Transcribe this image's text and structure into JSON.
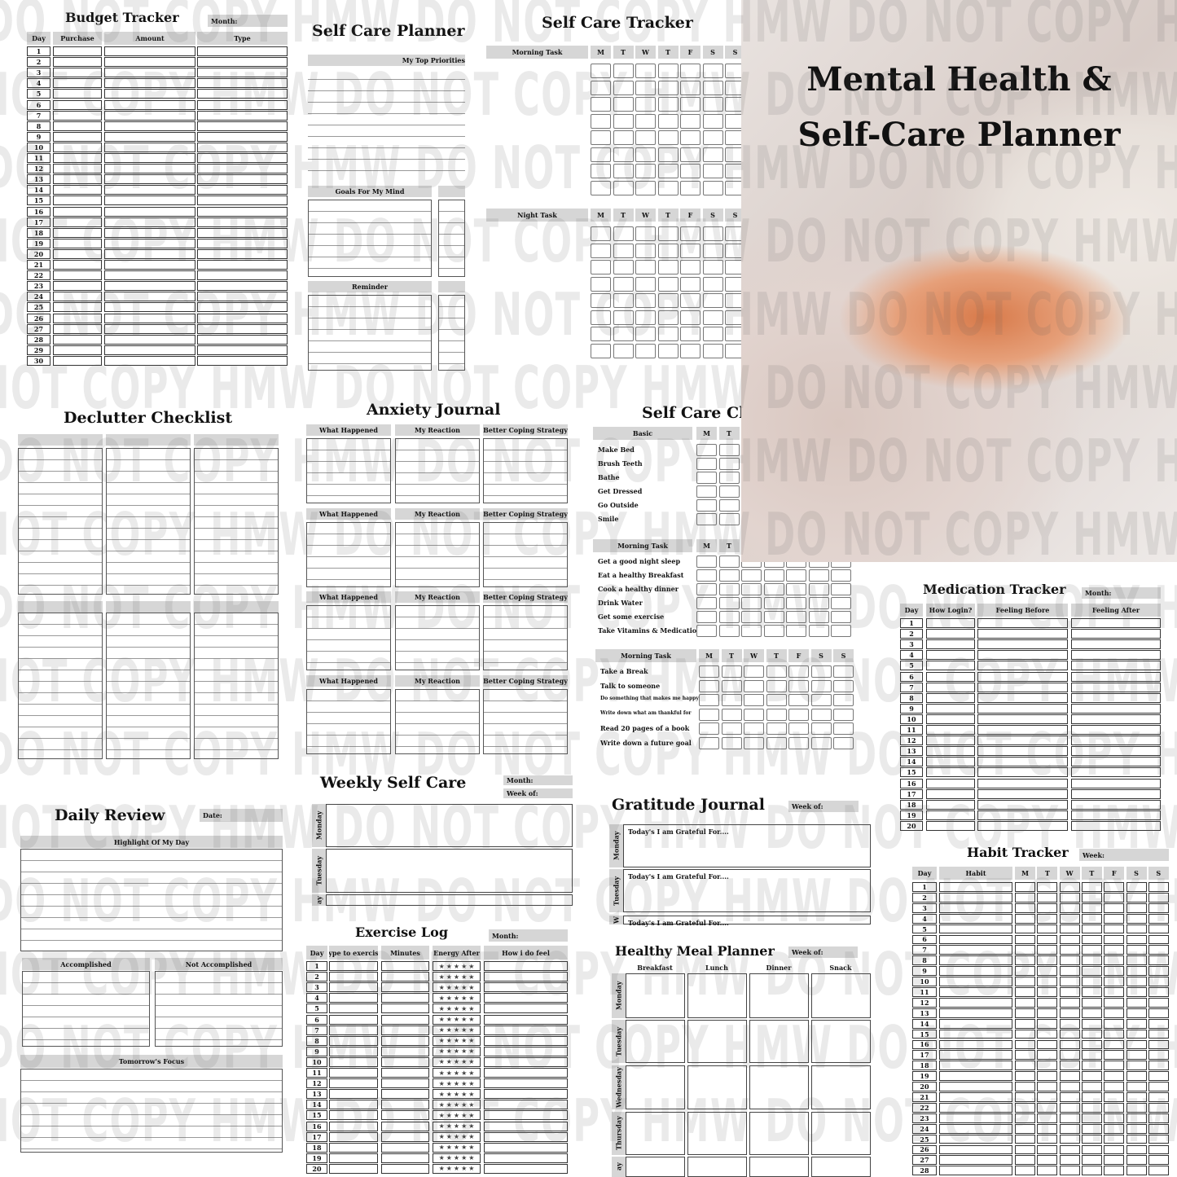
{
  "watermark": "DO NOT COPY HMW DO NOT COPY HMW DO NOT COPY HMW DO NOT COPY HMW",
  "cover": {
    "title_line1": "Mental Health &",
    "title_line2": "Self-Care Planner",
    "colors": {
      "fruit": "#d87a4a",
      "background": "#e9e3e0"
    }
  },
  "budget": {
    "title": "Budget Tracker",
    "month_label": "Month:",
    "columns": [
      "Day",
      "Purchase",
      "Amount",
      "Type"
    ],
    "days": [
      "1",
      "2",
      "3",
      "4",
      "5",
      "6",
      "7",
      "8",
      "9",
      "10",
      "11",
      "12",
      "13",
      "14",
      "15",
      "16",
      "17",
      "18",
      "19",
      "20",
      "21",
      "22",
      "23",
      "24",
      "25",
      "26",
      "27",
      "28",
      "29",
      "30"
    ]
  },
  "planner": {
    "title": "Self Care Planner",
    "priorities": "My Top Priorities",
    "goals": "Goals For My Mind",
    "reminder": "Reminder"
  },
  "tracker": {
    "title": "Self Care Tracker",
    "morning": "Morning Task",
    "night": "Night Task",
    "days": [
      "M",
      "T",
      "W",
      "T",
      "F",
      "S",
      "S"
    ]
  },
  "declutter": {
    "title": "Declutter Checklist"
  },
  "anxiety": {
    "title": "Anxiety Journal",
    "columns": [
      "What Happened",
      "My Reaction",
      "Better Coping Strategy"
    ]
  },
  "checklist": {
    "title": "Self Care Cl",
    "days": [
      "M",
      "T",
      "W",
      "T",
      "F",
      "S",
      "S"
    ],
    "sections": [
      {
        "header": "Basic",
        "items": [
          "Make Bed",
          "Brush Teeth",
          "Bathe",
          "Get Dressed",
          "Go Outside",
          "Smile"
        ]
      },
      {
        "header": "Morning Task",
        "items": [
          "Get a good night sleep",
          "Eat a healthy Breakfast",
          "Cook a healthy dinner",
          "Drink Water",
          "Get some exercise",
          "Take Vitamins & Medications"
        ]
      },
      {
        "header": "Morning Task",
        "items": [
          "Take a Break",
          "Talk to someone",
          "Do something that makes me happy now",
          "Write down what am thankful for",
          "Read 20 pages of a book",
          "Write down a future goal"
        ]
      }
    ]
  },
  "medication": {
    "title": "Medication Tracker",
    "month_label": "Month:",
    "columns": [
      "Day",
      "How Login?",
      "Feeling Before",
      "Feeling After"
    ],
    "days": [
      "1",
      "2",
      "3",
      "4",
      "5",
      "6",
      "7",
      "8",
      "9",
      "10",
      "11",
      "12",
      "13",
      "14",
      "15",
      "16",
      "17",
      "18",
      "19",
      "20"
    ]
  },
  "daily_review": {
    "title": "Daily Review",
    "date_label": "Date:",
    "highlight": "Highlight Of My Day",
    "accomplished": "Accomplished",
    "not_accomplished": "Not Accomplished",
    "tomorrow": "Tomorrow's Focus"
  },
  "weekly": {
    "title": "Weekly Self Care",
    "month_label": "Month:",
    "week_label": "Week of:",
    "days": [
      "Monday",
      "Tuesday",
      "ay"
    ]
  },
  "exercise": {
    "title": "Exercise Log",
    "month_label": "Month:",
    "columns": [
      "Day",
      "Type to exercise",
      "Minutes",
      "Energy After",
      "How i do feel"
    ],
    "energy_scale_max": 5,
    "days": [
      "1",
      "2",
      "3",
      "4",
      "5",
      "6",
      "7",
      "8",
      "9",
      "10",
      "11",
      "12",
      "13",
      "14",
      "15",
      "16",
      "17",
      "18",
      "19",
      "20"
    ]
  },
  "gratitude": {
    "title": "Gratitude Journal",
    "week_label": "Week of:",
    "prompt": "Today's I am Grateful For....",
    "days": [
      "Monday",
      "Tuesday",
      "W"
    ]
  },
  "meal": {
    "title": "Healthy Meal Planner",
    "week_label": "Week of:",
    "columns": [
      "Breakfast",
      "Lunch",
      "Dinner",
      "Snack"
    ],
    "days": [
      "Monday",
      "Tuesday",
      "Wednesday",
      "Thursday",
      "ay"
    ]
  },
  "habit": {
    "title": "Habit Tracker",
    "week_label": "Week:",
    "columns": [
      "Day",
      "Habit",
      "M",
      "T",
      "W",
      "T",
      "F",
      "S",
      "S"
    ],
    "days": [
      "1",
      "2",
      "3",
      "4",
      "5",
      "6",
      "7",
      "8",
      "9",
      "10",
      "11",
      "12",
      "13",
      "14",
      "15",
      "16",
      "17",
      "18",
      "19",
      "20",
      "21",
      "22",
      "23",
      "24",
      "25",
      "26",
      "27",
      "28"
    ]
  }
}
